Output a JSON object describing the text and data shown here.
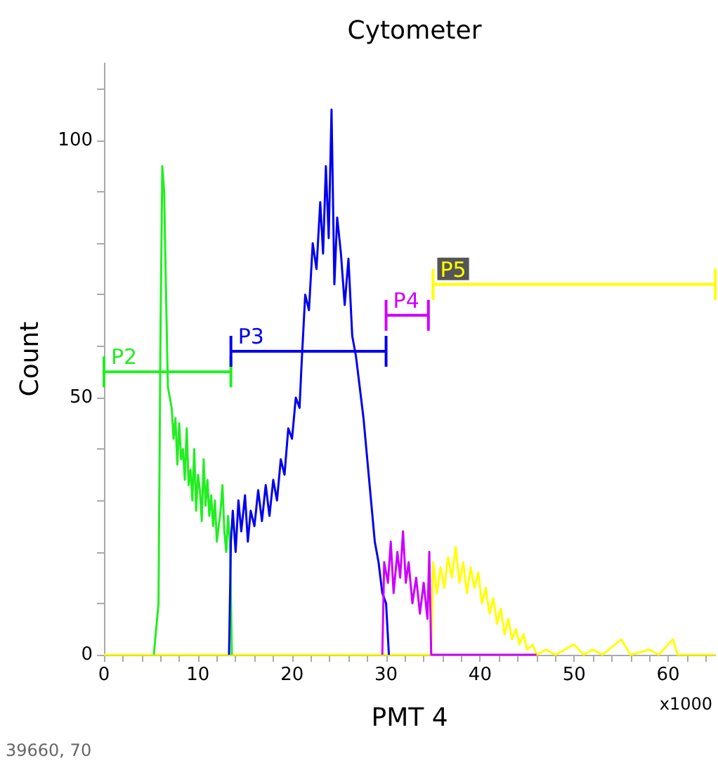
{
  "chart_data": {
    "type": "line",
    "title": "Cytometer",
    "xlabel": "PMT 4",
    "ylabel": "Count",
    "annotations": [
      "x1000",
      "39660, 70"
    ],
    "xlim": [
      0,
      65
    ],
    "ylim": [
      0,
      115
    ],
    "xticks": [
      0,
      {
        "value": 2,
        "label": null
      },
      {
        "value": 4,
        "label": null
      },
      {
        "value": 6,
        "label": null
      },
      {
        "value": 8,
        "label": null
      },
      10,
      {
        "value": 12,
        "label": null
      },
      {
        "value": 14,
        "label": null
      },
      {
        "value": 16,
        "label": null
      },
      {
        "value": 18,
        "label": null
      },
      20,
      {
        "value": 22,
        "label": null
      },
      {
        "value": 24,
        "label": null
      },
      {
        "value": 26,
        "label": null
      },
      {
        "value": 28,
        "label": null
      },
      30,
      {
        "value": 32,
        "label": null
      },
      {
        "value": 34,
        "label": null
      },
      {
        "value": 36,
        "label": null
      },
      {
        "value": 38,
        "label": null
      },
      40,
      {
        "value": 42,
        "label": null
      },
      {
        "value": 44,
        "label": null
      },
      {
        "value": 46,
        "label": null
      },
      {
        "value": 48,
        "label": null
      },
      50,
      {
        "value": 52,
        "label": null
      },
      {
        "value": 54,
        "label": null
      },
      {
        "value": 56,
        "label": null
      },
      {
        "value": 58,
        "label": null
      },
      60,
      {
        "value": 62,
        "label": null
      },
      {
        "value": 64,
        "label": null
      }
    ],
    "yticks": [
      0,
      {
        "value": 10,
        "label": null
      },
      {
        "value": 20,
        "label": null
      },
      {
        "value": 30,
        "label": null
      },
      {
        "value": 40,
        "label": null
      },
      50,
      {
        "value": 60,
        "label": null
      },
      {
        "value": 70,
        "label": null
      },
      {
        "value": 80,
        "label": null
      },
      {
        "value": 90,
        "label": null
      },
      100,
      {
        "value": 110,
        "label": null
      }
    ],
    "grid": false,
    "legend": false,
    "marker": "none",
    "line_style": "solid",
    "series": [
      {
        "color": "#ffff00",
        "x": [
          0,
          34.8,
          35,
          35.4,
          35.8,
          36.2,
          36.6,
          37,
          37.4,
          37.8,
          38.2,
          38.6,
          39,
          39.4,
          39.8,
          40.2,
          40.6,
          41,
          41.4,
          41.8,
          42.2,
          42.6,
          43,
          43.4,
          43.8,
          44.2,
          44.6,
          45,
          45.6,
          46,
          47,
          48,
          50,
          51,
          52,
          53,
          55,
          56,
          58,
          59,
          60.5,
          61,
          65
        ],
        "values": [
          0,
          0,
          18,
          12,
          17,
          13,
          19,
          15,
          21,
          14,
          18,
          12,
          17,
          13,
          16,
          10,
          13,
          8,
          11,
          6,
          9,
          4,
          7,
          3,
          5,
          2,
          4,
          1,
          2,
          0,
          1,
          0,
          2,
          0,
          1,
          0,
          3,
          0,
          1,
          0,
          3,
          0,
          0
        ]
      },
      {
        "color": "#22ee22",
        "x": [
          5.3,
          5.8,
          6,
          6.2,
          6.4,
          6.6,
          6.8,
          7,
          7.2,
          7.4,
          7.6,
          7.8,
          8,
          8.2,
          8.4,
          8.6,
          8.8,
          9,
          9.2,
          9.4,
          9.6,
          9.8,
          10,
          10.2,
          10.4,
          10.6,
          10.8,
          11,
          11.2,
          11.4,
          11.6,
          11.8,
          12,
          12.4,
          12.6,
          12.8,
          13,
          13.2,
          13.4,
          13.6
        ],
        "values": [
          0,
          10,
          60,
          95,
          90,
          70,
          52,
          50,
          48,
          42,
          46,
          37,
          45,
          38,
          40,
          34,
          44,
          33,
          36,
          30,
          40,
          28,
          35,
          32,
          26,
          38,
          29,
          34,
          27,
          31,
          25,
          30,
          22,
          28,
          33,
          24,
          20,
          27,
          22,
          0
        ]
      },
      {
        "color": "#0000ee",
        "x": [
          13.3,
          13.5,
          13.7,
          14,
          14.3,
          14.6,
          15,
          15.3,
          15.6,
          16,
          16.4,
          16.8,
          17.2,
          17.6,
          18,
          18.4,
          18.8,
          19.2,
          19.6,
          20,
          20.4,
          20.8,
          21,
          21.4,
          21.8,
          22.2,
          22.6,
          23,
          23.3,
          23.6,
          23.9,
          24.2,
          24.5,
          24.8,
          25.2,
          25.6,
          26,
          26.4,
          26.8,
          27.2,
          27.6,
          28,
          28.4,
          28.8,
          29.2,
          29.6,
          30,
          30.3
        ],
        "values": [
          0,
          22,
          28,
          20,
          30,
          24,
          31,
          22,
          28,
          25,
          32,
          26,
          33,
          27,
          34,
          30,
          38,
          35,
          44,
          42,
          50,
          48,
          56,
          70,
          67,
          80,
          75,
          88,
          78,
          95,
          81,
          106,
          72,
          85,
          78,
          68,
          77,
          62,
          58,
          52,
          46,
          38,
          30,
          22,
          18,
          12,
          10,
          0
        ]
      },
      {
        "color": "#cc00ff",
        "x": [
          29.6,
          29.8,
          30.2,
          30.5,
          30.8,
          31.2,
          31.5,
          31.8,
          32.1,
          32.4,
          32.8,
          33.2,
          33.6,
          34,
          34.4,
          34.6,
          34.8,
          46
        ],
        "values": [
          0,
          18,
          14,
          22,
          12,
          20,
          15,
          24,
          14,
          18,
          10,
          15,
          8,
          14,
          7,
          20,
          0,
          0
        ]
      },
      {
        "name": "P2",
        "color": "#22ee22",
        "x": [
          0,
          13.5
        ],
        "values": [
          55,
          55
        ],
        "errors": [
          3,
          3
        ]
      },
      {
        "name": "P3",
        "color": "#0000ee",
        "x": [
          13.5,
          30
        ],
        "values": [
          59,
          59
        ],
        "errors": [
          3,
          3
        ]
      },
      {
        "name": "P4",
        "color": "#cc00ff",
        "x": [
          30,
          34.5
        ],
        "values": [
          66,
          66
        ],
        "errors": [
          3,
          3
        ]
      },
      {
        "name": "P5",
        "color": "#ffff00",
        "x": [
          35,
          65
        ],
        "values": [
          72,
          72
        ],
        "errors": [
          3,
          3
        ]
      }
    ]
  }
}
